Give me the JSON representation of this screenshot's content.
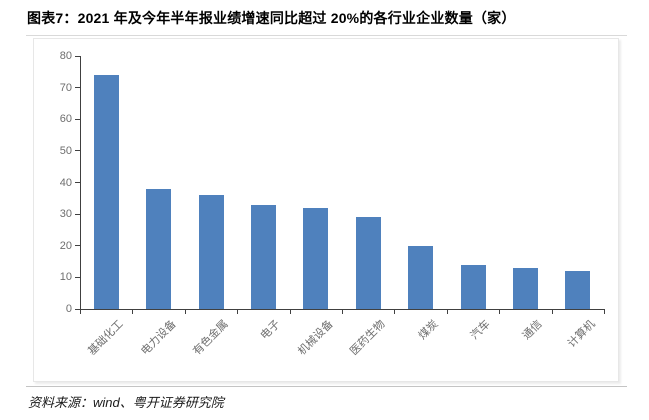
{
  "figure": {
    "title": "图表7：2021 年及今年半年报业绩增速同比超过 20%的各行业企业数量（家）",
    "source": "资料来源：wind、粤开证券研究院"
  },
  "colors": {
    "bar": "#4F81BD",
    "axis_line": "#404040",
    "tick_label": "#6e6e6e",
    "panel_border": "#e7e7e7",
    "rule": "#c9c9c9"
  },
  "chart_data": {
    "type": "bar",
    "title": "2021 年及今年半年报业绩增速同比超过 20%的各行业企业数量（家）",
    "categories": [
      "基础化工",
      "电力设备",
      "有色金属",
      "电子",
      "机械设备",
      "医药生物",
      "煤炭",
      "汽车",
      "通信",
      "计算机"
    ],
    "values": [
      74,
      38,
      36,
      33,
      32,
      29,
      20,
      14,
      13,
      12
    ],
    "xlabel": "",
    "ylabel": "",
    "ylim": [
      0,
      80
    ],
    "ytick_step": 10,
    "grid": false,
    "legend": false,
    "bar_color": "#4F81BD"
  }
}
